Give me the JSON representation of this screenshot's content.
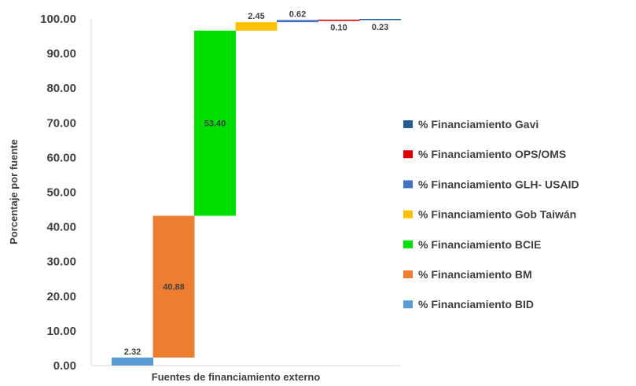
{
  "chart_data": {
    "type": "bar",
    "subtype": "waterfall",
    "xlabel": "Fuentes de financiamiento externo",
    "ylabel": "Porcentaje por fuente",
    "ylim": [
      0,
      100
    ],
    "yticks": [
      "0.00",
      "10.00",
      "20.00",
      "30.00",
      "40.00",
      "50.00",
      "60.00",
      "70.00",
      "80.00",
      "90.00",
      "100.00"
    ],
    "grid": false,
    "legend_position": "right",
    "series": [
      {
        "name": "% Financiamiento BID",
        "value": 2.32,
        "label": "2.32",
        "color": "#5B9BD5",
        "label_position": "above"
      },
      {
        "name": "% Financiamiento BM",
        "value": 40.88,
        "label": "40.88",
        "color": "#ED7D31",
        "label_position": "inside"
      },
      {
        "name": "% Financiamiento BCIE",
        "value": 53.4,
        "label": "53.40",
        "color": "#00E000",
        "label_position": "inside"
      },
      {
        "name": "% Financiamiento Gob Taiwán",
        "value": 2.45,
        "label": "2.45",
        "color": "#FFC000",
        "label_position": "above"
      },
      {
        "name": "% Financiamiento GLH- USAID",
        "value": 0.62,
        "label": "0.62",
        "color": "#4472C4",
        "label_position": "above"
      },
      {
        "name": "% Financiamiento OPS/OMS",
        "value": 0.1,
        "label": "0.10",
        "color": "#E00000",
        "label_position": "below"
      },
      {
        "name": "% Financiamiento Gavi",
        "value": 0.23,
        "label": "0.23",
        "color": "#255E91",
        "label_position": "below"
      }
    ],
    "legend_order": [
      "% Financiamiento Gavi",
      "% Financiamiento OPS/OMS",
      "% Financiamiento GLH- USAID",
      "% Financiamiento Gob Taiwán",
      "% Financiamiento BCIE",
      "% Financiamiento BM",
      "% Financiamiento BID"
    ]
  }
}
